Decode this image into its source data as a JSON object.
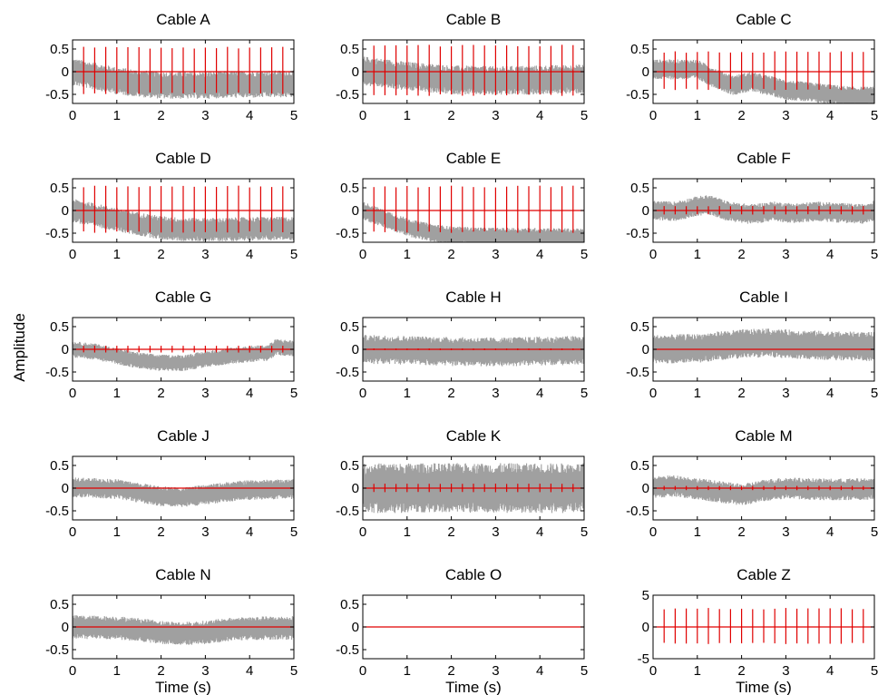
{
  "figure": {
    "ylabel": "Amplitude"
  },
  "chart_data": [
    {
      "type": "line",
      "title": "Cable A",
      "xlabel": "",
      "xlim": [
        0,
        5
      ],
      "ylim": [
        -0.7,
        0.7
      ],
      "xticks": [
        "0",
        "1",
        "2",
        "3",
        "4",
        "5"
      ],
      "yticks": [
        "0.5",
        "0",
        "-0.5"
      ],
      "gray_baseline": [
        [
          0,
          0.0
        ],
        [
          0.5,
          -0.1
        ],
        [
          1,
          -0.2
        ],
        [
          1.5,
          -0.26
        ],
        [
          2,
          -0.3
        ],
        [
          2.5,
          -0.3
        ],
        [
          3,
          -0.3
        ],
        [
          3.5,
          -0.28
        ],
        [
          4,
          -0.28
        ],
        [
          4.5,
          -0.27
        ],
        [
          5,
          -0.27
        ]
      ],
      "gray_spread": 0.3,
      "red_spike_interval": 0.25,
      "red_spike_amplitude": 0.55,
      "red_baseline": 0,
      "series": [
        {
          "color": "#a0a0a0"
        },
        {
          "color": "#e00000"
        }
      ]
    },
    {
      "type": "line",
      "title": "Cable B",
      "xlabel": "",
      "xlim": [
        0,
        5
      ],
      "ylim": [
        -0.7,
        0.7
      ],
      "xticks": [
        "0",
        "1",
        "2",
        "3",
        "4",
        "5"
      ],
      "yticks": [
        "0.5",
        "0",
        "-0.5"
      ],
      "gray_baseline": [
        [
          0,
          0.02
        ],
        [
          1,
          -0.1
        ],
        [
          2,
          -0.18
        ],
        [
          3,
          -0.2
        ],
        [
          4,
          -0.18
        ],
        [
          5,
          -0.16
        ]
      ],
      "gray_spread": 0.32,
      "red_spike_interval": 0.25,
      "red_spike_amplitude": 0.6,
      "red_baseline": 0,
      "series": [
        {
          "color": "#a0a0a0"
        },
        {
          "color": "#e00000"
        }
      ]
    },
    {
      "type": "line",
      "title": "Cable C",
      "xlabel": "",
      "xlim": [
        0,
        5
      ],
      "ylim": [
        -0.7,
        0.7
      ],
      "xticks": [
        "0",
        "1",
        "2",
        "3",
        "4",
        "5"
      ],
      "yticks": [
        "0.5",
        "0",
        "-0.5"
      ],
      "gray_baseline": [
        [
          0,
          0.05
        ],
        [
          1,
          0.05
        ],
        [
          1.3,
          -0.1
        ],
        [
          1.8,
          -0.3
        ],
        [
          2.2,
          -0.22
        ],
        [
          2.6,
          -0.3
        ],
        [
          3,
          -0.4
        ],
        [
          3.5,
          -0.45
        ],
        [
          4,
          -0.5
        ],
        [
          4.5,
          -0.55
        ],
        [
          5,
          -0.55
        ]
      ],
      "gray_spread": 0.22,
      "red_spike_interval": 0.25,
      "red_spike_amplitude": 0.45,
      "red_baseline": 0,
      "series": [
        {
          "color": "#a0a0a0"
        },
        {
          "color": "#e00000"
        }
      ]
    },
    {
      "type": "line",
      "title": "Cable D",
      "xlabel": "",
      "xlim": [
        0,
        5
      ],
      "ylim": [
        -0.7,
        0.7
      ],
      "xticks": [
        "0",
        "1",
        "2",
        "3",
        "4",
        "5"
      ],
      "yticks": [
        "0.5",
        "0",
        "-0.5"
      ],
      "gray_baseline": [
        [
          0,
          0.0
        ],
        [
          0.5,
          -0.1
        ],
        [
          1,
          -0.2
        ],
        [
          1.5,
          -0.3
        ],
        [
          2,
          -0.38
        ],
        [
          2.5,
          -0.42
        ],
        [
          3,
          -0.42
        ],
        [
          3.5,
          -0.42
        ],
        [
          4,
          -0.4
        ],
        [
          4.5,
          -0.4
        ],
        [
          5,
          -0.4
        ]
      ],
      "gray_spread": 0.26,
      "red_spike_interval": 0.25,
      "red_spike_amplitude": 0.55,
      "red_baseline": 0,
      "series": [
        {
          "color": "#a0a0a0"
        },
        {
          "color": "#e00000"
        }
      ]
    },
    {
      "type": "line",
      "title": "Cable E",
      "xlabel": "",
      "xlim": [
        0,
        5
      ],
      "ylim": [
        -0.7,
        0.7
      ],
      "xticks": [
        "0",
        "1",
        "2",
        "3",
        "4",
        "5"
      ],
      "yticks": [
        "0.5",
        "0",
        "-0.5"
      ],
      "gray_baseline": [
        [
          0,
          0.0
        ],
        [
          0.4,
          -0.15
        ],
        [
          0.8,
          -0.3
        ],
        [
          1.2,
          -0.42
        ],
        [
          1.6,
          -0.5
        ],
        [
          2,
          -0.55
        ],
        [
          3,
          -0.58
        ],
        [
          4,
          -0.58
        ],
        [
          5,
          -0.6
        ]
      ],
      "gray_spread": 0.2,
      "red_spike_interval": 0.25,
      "red_spike_amplitude": 0.55,
      "red_baseline": 0,
      "series": [
        {
          "color": "#a0a0a0"
        },
        {
          "color": "#e00000"
        }
      ]
    },
    {
      "type": "line",
      "title": "Cable F",
      "xlabel": "",
      "xlim": [
        0,
        5
      ],
      "ylim": [
        -0.7,
        0.7
      ],
      "xticks": [
        "0",
        "1",
        "2",
        "3",
        "4",
        "5"
      ],
      "yticks": [
        "0.5",
        "0",
        "-0.5"
      ],
      "gray_baseline": [
        [
          0,
          0.0
        ],
        [
          0.5,
          -0.02
        ],
        [
          1,
          0.1
        ],
        [
          1.3,
          0.12
        ],
        [
          1.7,
          -0.02
        ],
        [
          2.2,
          -0.08
        ],
        [
          2.7,
          -0.02
        ],
        [
          3.2,
          -0.06
        ],
        [
          3.7,
          -0.02
        ],
        [
          4.2,
          -0.05
        ],
        [
          4.7,
          -0.08
        ],
        [
          5,
          0.0
        ]
      ],
      "gray_spread": 0.22,
      "red_spike_interval": 0.25,
      "red_spike_amplitude": 0.1,
      "red_baseline": 0,
      "series": [
        {
          "color": "#a0a0a0"
        },
        {
          "color": "#e00000"
        }
      ]
    },
    {
      "type": "line",
      "title": "Cable G",
      "xlabel": "",
      "xlim": [
        0,
        5
      ],
      "ylim": [
        -0.7,
        0.7
      ],
      "xticks": [
        "0",
        "1",
        "2",
        "3",
        "4",
        "5"
      ],
      "yticks": [
        "0.5",
        "0",
        "-0.5"
      ],
      "gray_baseline": [
        [
          0,
          0.0
        ],
        [
          0.5,
          -0.05
        ],
        [
          1,
          -0.15
        ],
        [
          1.5,
          -0.25
        ],
        [
          2,
          -0.3
        ],
        [
          2.5,
          -0.3
        ],
        [
          3,
          -0.22
        ],
        [
          3.5,
          -0.15
        ],
        [
          4,
          -0.1
        ],
        [
          4.4,
          -0.08
        ],
        [
          4.6,
          0.05
        ],
        [
          5,
          0.02
        ]
      ],
      "gray_spread": 0.18,
      "red_spike_interval": 0.25,
      "red_spike_amplitude": 0.08,
      "red_baseline": 0,
      "series": [
        {
          "color": "#a0a0a0"
        },
        {
          "color": "#e00000"
        }
      ]
    },
    {
      "type": "line",
      "title": "Cable H",
      "xlabel": "",
      "xlim": [
        0,
        5
      ],
      "ylim": [
        -0.7,
        0.7
      ],
      "xticks": [
        "0",
        "1",
        "2",
        "3",
        "4",
        "5"
      ],
      "yticks": [
        "0.5",
        "0",
        "-0.5"
      ],
      "gray_baseline": [
        [
          0,
          0.0
        ],
        [
          1,
          -0.02
        ],
        [
          2,
          -0.05
        ],
        [
          3,
          -0.06
        ],
        [
          4,
          -0.04
        ],
        [
          5,
          -0.02
        ]
      ],
      "gray_spread": 0.32,
      "red_spike_interval": 0.25,
      "red_spike_amplitude": 0.02,
      "red_baseline": 0,
      "series": [
        {
          "color": "#a0a0a0"
        },
        {
          "color": "#e00000"
        }
      ]
    },
    {
      "type": "line",
      "title": "Cable I",
      "xlabel": "",
      "xlim": [
        0,
        5
      ],
      "ylim": [
        -0.7,
        0.7
      ],
      "xticks": [
        "0",
        "1",
        "2",
        "3",
        "4",
        "5"
      ],
      "yticks": [
        "0.5",
        "0",
        "-0.5"
      ],
      "gray_baseline": [
        [
          0,
          0.0
        ],
        [
          1,
          0.02
        ],
        [
          1.5,
          0.08
        ],
        [
          2,
          0.12
        ],
        [
          2.5,
          0.14
        ],
        [
          3,
          0.12
        ],
        [
          3.5,
          0.1
        ],
        [
          4,
          0.08
        ],
        [
          5,
          0.06
        ]
      ],
      "gray_spread": 0.32,
      "red_spike_interval": 0.25,
      "red_spike_amplitude": 0.0,
      "red_baseline": 0,
      "series": [
        {
          "color": "#a0a0a0"
        },
        {
          "color": "#e00000"
        }
      ]
    },
    {
      "type": "line",
      "title": "Cable J",
      "xlabel": "",
      "xlim": [
        0,
        5
      ],
      "ylim": [
        -0.7,
        0.7
      ],
      "xticks": [
        "0",
        "1",
        "2",
        "3",
        "4",
        "5"
      ],
      "yticks": [
        "0.5",
        "0",
        "-0.5"
      ],
      "gray_baseline": [
        [
          0,
          0.02
        ],
        [
          1,
          -0.02
        ],
        [
          1.5,
          -0.1
        ],
        [
          2,
          -0.18
        ],
        [
          2.5,
          -0.2
        ],
        [
          3,
          -0.15
        ],
        [
          3.5,
          -0.08
        ],
        [
          4,
          -0.04
        ],
        [
          5,
          -0.02
        ]
      ],
      "gray_spread": 0.22,
      "red_spike_interval": 0.25,
      "red_spike_amplitude": 0.0,
      "red_baseline": 0,
      "series": [
        {
          "color": "#a0a0a0"
        },
        {
          "color": "#e00000"
        }
      ]
    },
    {
      "type": "line",
      "title": "Cable K",
      "xlabel": "",
      "xlim": [
        0,
        5
      ],
      "ylim": [
        -0.7,
        0.7
      ],
      "xticks": [
        "0",
        "1",
        "2",
        "3",
        "4",
        "5"
      ],
      "yticks": [
        "0.5",
        "0",
        "-0.5"
      ],
      "gray_baseline": [
        [
          0,
          0.0
        ],
        [
          5,
          0.0
        ]
      ],
      "gray_spread": 0.55,
      "red_spike_interval": 0.25,
      "red_spike_amplitude": 0.1,
      "red_baseline": 0,
      "series": [
        {
          "color": "#a0a0a0"
        },
        {
          "color": "#e00000"
        }
      ]
    },
    {
      "type": "line",
      "title": "Cable M",
      "xlabel": "",
      "xlim": [
        0,
        5
      ],
      "ylim": [
        -0.7,
        0.7
      ],
      "xticks": [
        "0",
        "1",
        "2",
        "3",
        "4",
        "5"
      ],
      "yticks": [
        "0.5",
        "0",
        "-0.5"
      ],
      "gray_baseline": [
        [
          0,
          0.02
        ],
        [
          0.5,
          0.05
        ],
        [
          1,
          -0.02
        ],
        [
          1.5,
          -0.08
        ],
        [
          2,
          -0.15
        ],
        [
          2.5,
          -0.05
        ],
        [
          3,
          0.0
        ],
        [
          3.5,
          -0.02
        ],
        [
          4,
          -0.03
        ],
        [
          5,
          -0.02
        ]
      ],
      "gray_spread": 0.24,
      "red_spike_interval": 0.25,
      "red_spike_amplitude": 0.05,
      "red_baseline": 0,
      "series": [
        {
          "color": "#a0a0a0"
        },
        {
          "color": "#e00000"
        }
      ]
    },
    {
      "type": "line",
      "title": "Cable N",
      "xlabel": "Time (s)",
      "xlim": [
        0,
        5
      ],
      "ylim": [
        -0.7,
        0.7
      ],
      "xticks": [
        "0",
        "1",
        "2",
        "3",
        "4",
        "5"
      ],
      "yticks": [
        "0.5",
        "0",
        "-0.5"
      ],
      "gray_baseline": [
        [
          0,
          0.0
        ],
        [
          1,
          -0.02
        ],
        [
          1.5,
          -0.06
        ],
        [
          2,
          -0.12
        ],
        [
          2.5,
          -0.15
        ],
        [
          3,
          -0.12
        ],
        [
          3.5,
          -0.06
        ],
        [
          4,
          -0.03
        ],
        [
          5,
          -0.02
        ]
      ],
      "gray_spread": 0.26,
      "red_spike_interval": 0.25,
      "red_spike_amplitude": 0.0,
      "red_baseline": 0,
      "series": [
        {
          "color": "#a0a0a0"
        },
        {
          "color": "#e00000"
        }
      ]
    },
    {
      "type": "line",
      "title": "Cable O",
      "xlabel": "Time (s)",
      "xlim": [
        0,
        5
      ],
      "ylim": [
        -0.7,
        0.7
      ],
      "xticks": [
        "0",
        "1",
        "2",
        "3",
        "4",
        "5"
      ],
      "yticks": [
        "0.5",
        "0",
        "-0.5"
      ],
      "gray_baseline": [
        [
          0,
          0.0
        ],
        [
          5,
          0.0
        ]
      ],
      "gray_spread": 0.0,
      "red_spike_interval": 0.25,
      "red_spike_amplitude": 0.0,
      "red_baseline": 0,
      "series": [
        {
          "color": "#a0a0a0"
        },
        {
          "color": "#e00000"
        }
      ]
    },
    {
      "type": "line",
      "title": "Cable Z",
      "xlabel": "Time (s)",
      "xlim": [
        0,
        5
      ],
      "ylim": [
        -5,
        5
      ],
      "xticks": [
        "0",
        "1",
        "2",
        "3",
        "4",
        "5"
      ],
      "yticks": [
        "5",
        "0",
        "-5"
      ],
      "gray_baseline": [
        [
          0,
          0.0
        ],
        [
          5,
          0.0
        ]
      ],
      "gray_spread": 0.0,
      "red_spike_interval": 0.25,
      "red_spike_amplitude": 3.0,
      "red_baseline": 0,
      "series": [
        {
          "color": "#a0a0a0"
        },
        {
          "color": "#e00000"
        }
      ]
    }
  ]
}
